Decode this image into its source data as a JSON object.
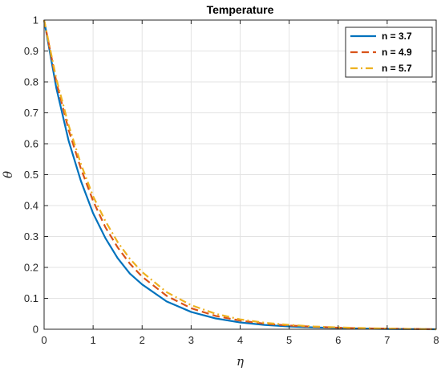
{
  "chart_data": {
    "type": "line",
    "title": "Temperature",
    "xlabel": "η",
    "ylabel": "θ",
    "xlim": [
      0,
      8
    ],
    "ylim": [
      0,
      1
    ],
    "xticks": [
      "0",
      "1",
      "2",
      "3",
      "4",
      "5",
      "6",
      "7",
      "8"
    ],
    "yticks": [
      "0",
      "0.1",
      "0.2",
      "0.3",
      "0.4",
      "0.5",
      "0.6",
      "0.7",
      "0.8",
      "0.9",
      "1"
    ],
    "grid": true,
    "legend_position": "top-right",
    "x": [
      0,
      0.25,
      0.5,
      0.75,
      1,
      1.25,
      1.5,
      1.75,
      2,
      2.5,
      3,
      3.5,
      4,
      4.5,
      5,
      5.5,
      6,
      6.5,
      7,
      7.5,
      8
    ],
    "series": [
      {
        "name": "n = 3.7",
        "color": "#0072BD",
        "style": "solid",
        "values": [
          1,
          0.78,
          0.61,
          0.48,
          0.375,
          0.295,
          0.23,
          0.18,
          0.145,
          0.09,
          0.056,
          0.035,
          0.022,
          0.014,
          0.009,
          0.006,
          0.004,
          0.002,
          0.001,
          0.0005,
          0
        ]
      },
      {
        "name": "n = 4.9",
        "color": "#D95319",
        "style": "dashed",
        "values": [
          1,
          0.8,
          0.645,
          0.52,
          0.415,
          0.33,
          0.265,
          0.212,
          0.17,
          0.108,
          0.068,
          0.043,
          0.028,
          0.018,
          0.012,
          0.008,
          0.005,
          0.003,
          0.002,
          0.001,
          0
        ]
      },
      {
        "name": "n = 5.7",
        "color": "#EDB120",
        "style": "dashdot",
        "values": [
          1,
          0.81,
          0.66,
          0.535,
          0.43,
          0.35,
          0.282,
          0.228,
          0.185,
          0.12,
          0.078,
          0.05,
          0.032,
          0.021,
          0.014,
          0.009,
          0.006,
          0.004,
          0.002,
          0.001,
          0
        ]
      }
    ]
  }
}
